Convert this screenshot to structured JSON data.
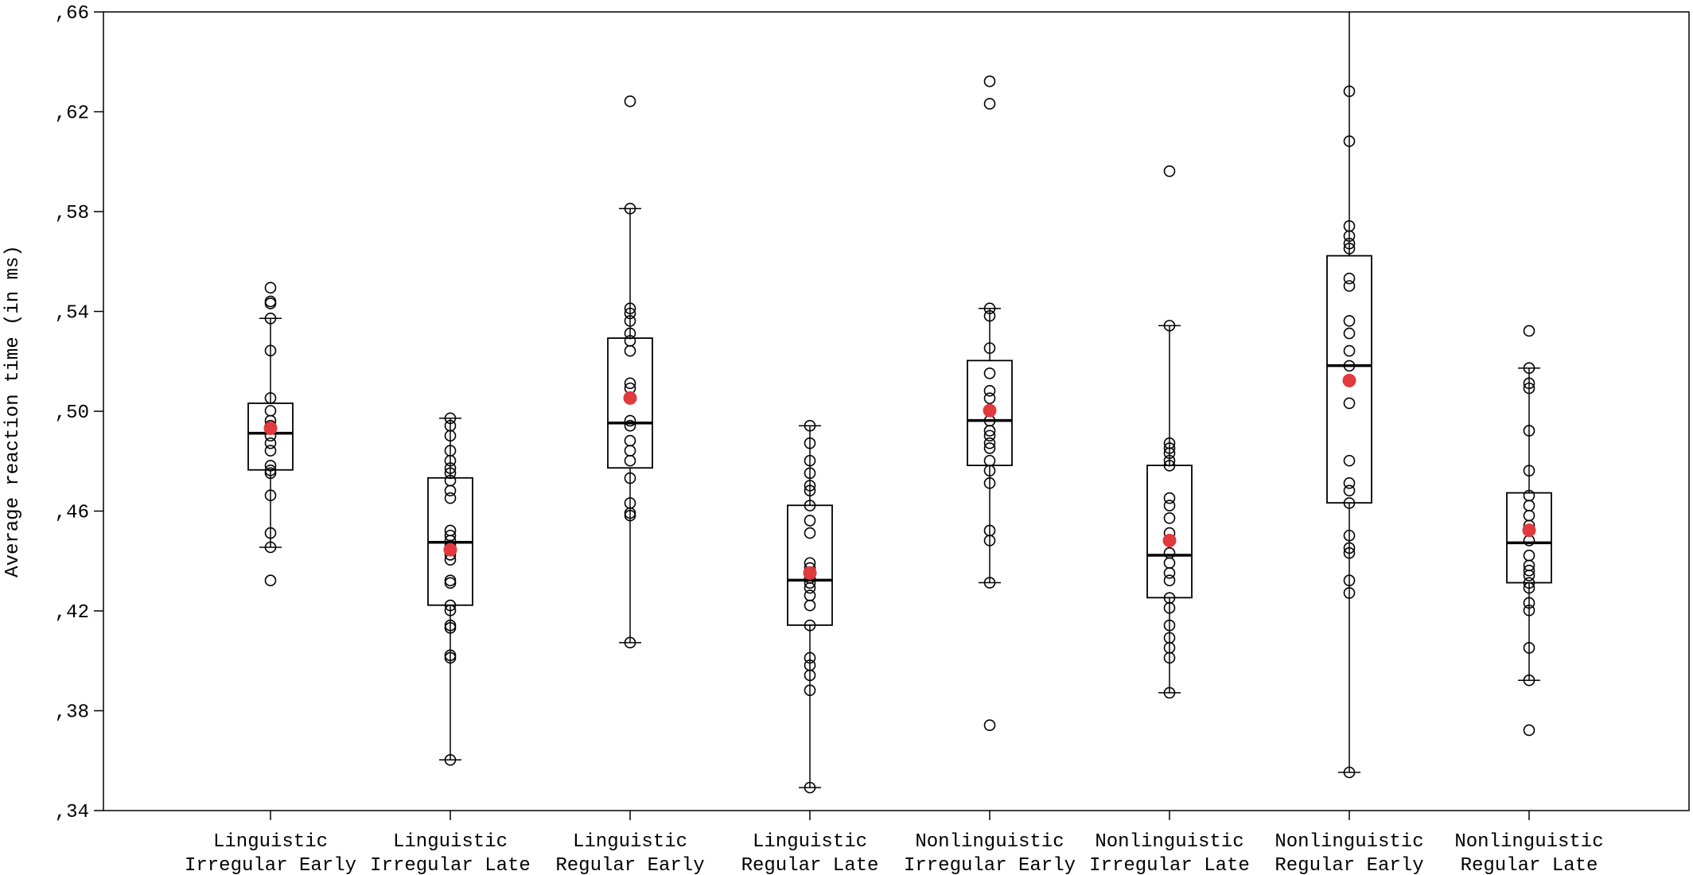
{
  "chart_data": {
    "type": "boxplot",
    "title": "",
    "xlabel": "",
    "ylabel": "Average reaction time (in ms)",
    "ylim": [
      0.34,
      0.66
    ],
    "yticks": [
      0.34,
      0.38,
      0.42,
      0.46,
      0.5,
      0.54,
      0.58,
      0.62,
      0.66
    ],
    "ytick_labels": [
      ",34",
      ",38",
      ",42",
      ",46",
      ",50",
      ",54",
      ",58",
      ",62",
      ",66"
    ],
    "grid": false,
    "colors": {
      "box": "#000000",
      "points": "#000000",
      "mean": "#e0393e"
    },
    "categories": [
      {
        "label_lines": [
          "Linguistic",
          "Irregular Early"
        ],
        "q1": 0.4765,
        "median": 0.4912,
        "q3": 0.5032,
        "whisker_low": 0.4455,
        "whisker_high": 0.5372,
        "mean": 0.4932,
        "points": [
          0.5495,
          0.544,
          0.5432,
          0.5372,
          0.5243,
          0.5053,
          0.5002,
          0.4962,
          0.4942,
          0.4932,
          0.4902,
          0.4872,
          0.4842,
          0.4782,
          0.4763,
          0.4752,
          0.4663,
          0.4512,
          0.4455,
          0.4322
        ]
      },
      {
        "label_lines": [
          "Linguistic",
          "Irregular Late"
        ],
        "q1": 0.4223,
        "median": 0.4475,
        "q3": 0.4733,
        "whisker_low": 0.3603,
        "whisker_high": 0.4972,
        "mean": 0.4445,
        "points": [
          0.4972,
          0.4942,
          0.4902,
          0.4842,
          0.4802,
          0.4772,
          0.4752,
          0.4722,
          0.4682,
          0.4652,
          0.4522,
          0.4502,
          0.4482,
          0.4462,
          0.4445,
          0.4425,
          0.4405,
          0.4322,
          0.4312,
          0.4222,
          0.4202,
          0.4142,
          0.4132,
          0.4022,
          0.4012,
          0.3603
        ]
      },
      {
        "label_lines": [
          "Linguistic",
          "Regular Early"
        ],
        "q1": 0.4773,
        "median": 0.4953,
        "q3": 0.5293,
        "whisker_low": 0.4073,
        "whisker_high": 0.5812,
        "mean": 0.5053,
        "points": [
          0.6242,
          0.5812,
          0.5412,
          0.5392,
          0.5362,
          0.5312,
          0.5282,
          0.5242,
          0.5112,
          0.5092,
          0.5053,
          0.4962,
          0.4942,
          0.4882,
          0.4842,
          0.4802,
          0.4732,
          0.4632,
          0.4592,
          0.4582,
          0.4073
        ]
      },
      {
        "label_lines": [
          "Linguistic",
          "Regular Late"
        ],
        "q1": 0.4143,
        "median": 0.4323,
        "q3": 0.4623,
        "whisker_low": 0.3492,
        "whisker_high": 0.4942,
        "mean": 0.4352,
        "points": [
          0.4942,
          0.4872,
          0.4802,
          0.4752,
          0.4702,
          0.4682,
          0.4622,
          0.4562,
          0.4512,
          0.4392,
          0.4372,
          0.4352,
          0.4332,
          0.4312,
          0.4292,
          0.4262,
          0.4222,
          0.4142,
          0.4012,
          0.3982,
          0.3942,
          0.3882,
          0.3492
        ]
      },
      {
        "label_lines": [
          "Nonlinguistic",
          "Irregular Early"
        ],
        "q1": 0.4783,
        "median": 0.4963,
        "q3": 0.5203,
        "whisker_low": 0.4313,
        "whisker_high": 0.5412,
        "mean": 0.5003,
        "points": [
          0.6322,
          0.6232,
          0.5412,
          0.5382,
          0.5253,
          0.5152,
          0.5082,
          0.5052,
          0.5003,
          0.4962,
          0.4922,
          0.4902,
          0.4872,
          0.4852,
          0.4802,
          0.4762,
          0.4712,
          0.4522,
          0.4482,
          0.4313,
          0.3742
        ]
      },
      {
        "label_lines": [
          "Nonlinguistic",
          "Irregular Late"
        ],
        "q1": 0.4253,
        "median": 0.4423,
        "q3": 0.4783,
        "whisker_low": 0.3872,
        "whisker_high": 0.5343,
        "mean": 0.4482,
        "points": [
          0.5962,
          0.5343,
          0.4872,
          0.4852,
          0.4832,
          0.4802,
          0.4782,
          0.4652,
          0.4622,
          0.4572,
          0.4512,
          0.4482,
          0.4432,
          0.4392,
          0.4352,
          0.4322,
          0.4252,
          0.4212,
          0.4142,
          0.4092,
          0.4052,
          0.4012,
          0.3872
        ]
      },
      {
        "label_lines": [
          "Nonlinguistic",
          "Regular Early"
        ],
        "q1": 0.4633,
        "median": 0.5183,
        "q3": 0.5623,
        "whisker_low": 0.3553,
        "whisker_high": 0.6602,
        "mean": 0.5123,
        "points": [
          0.6282,
          0.6082,
          0.5742,
          0.5702,
          0.5672,
          0.5652,
          0.5532,
          0.5502,
          0.5362,
          0.5312,
          0.5242,
          0.5182,
          0.5123,
          0.5032,
          0.4802,
          0.4712,
          0.4682,
          0.4632,
          0.4502,
          0.4452,
          0.4432,
          0.4322,
          0.4272,
          0.3553
        ]
      },
      {
        "label_lines": [
          "Nonlinguistic",
          "Regular Late"
        ],
        "q1": 0.4313,
        "median": 0.4473,
        "q3": 0.4673,
        "whisker_low": 0.3922,
        "whisker_high": 0.5173,
        "mean": 0.4523,
        "points": [
          0.5322,
          0.5173,
          0.5112,
          0.5092,
          0.4922,
          0.4762,
          0.4662,
          0.4622,
          0.4582,
          0.4542,
          0.4523,
          0.4482,
          0.4422,
          0.4382,
          0.4362,
          0.4342,
          0.4312,
          0.4292,
          0.4232,
          0.4202,
          0.4052,
          0.3922,
          0.3722
        ]
      }
    ]
  }
}
